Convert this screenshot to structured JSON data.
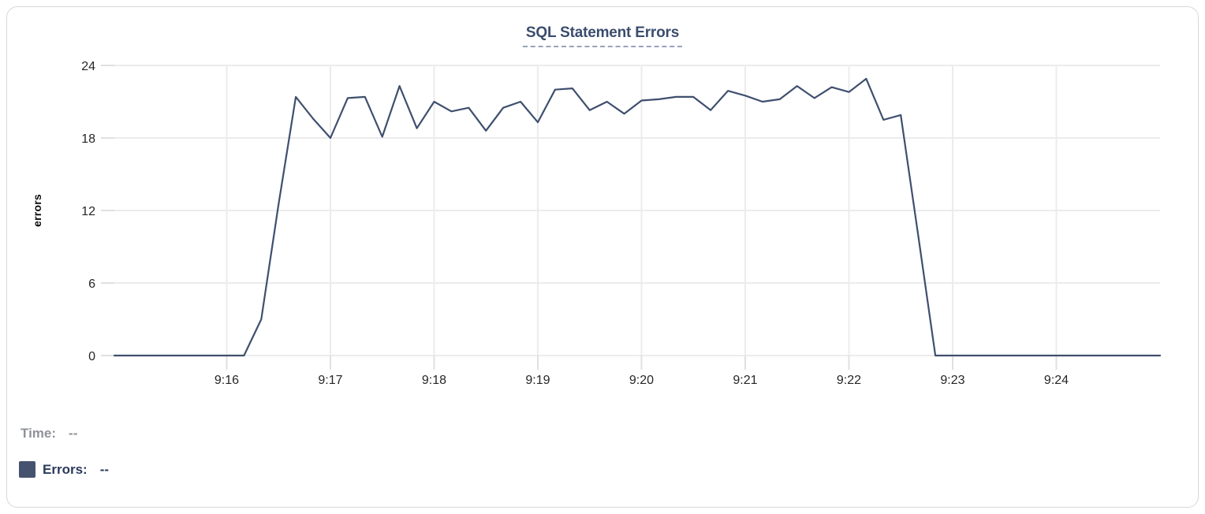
{
  "card": {
    "title": "SQL Statement Errors"
  },
  "tooltip": {
    "time_label": "Time:",
    "time_value": "--",
    "errors_label": "Errors:",
    "errors_value": "--"
  },
  "colors": {
    "line": "#3f4f6e",
    "grid": "#ececec",
    "tick_stub": "#e0e0e0",
    "axis_text": "#262626",
    "title": "#3b4d6e",
    "title_underline": "#98a3bc",
    "time_text": "#8e9298",
    "errors_text": "#2b3a5c",
    "swatch": "#46536e",
    "card_border": "#d8d8d8"
  },
  "chart_data": {
    "type": "line",
    "title": "SQL Statement Errors",
    "xlabel": "",
    "ylabel": "errors",
    "ylim": [
      0,
      24
    ],
    "y_tick_labels": [
      0,
      6,
      12,
      18,
      24
    ],
    "x_domain": [
      "9:14:55",
      "9:25:00"
    ],
    "x_tick_labels": [
      "9:16",
      "9:17",
      "9:18",
      "9:19",
      "9:20",
      "9:21",
      "9:22",
      "9:23",
      "9:24"
    ],
    "grid": true,
    "legend_position": "bottom-left",
    "series": [
      {
        "name": "Errors",
        "color": "#3f4f6e",
        "times": [
          "9:14:55",
          "9:15:00",
          "9:15:10",
          "9:15:20",
          "9:15:30",
          "9:15:40",
          "9:15:50",
          "9:16:00",
          "9:16:10",
          "9:16:20",
          "9:16:30",
          "9:16:40",
          "9:16:50",
          "9:17:00",
          "9:17:10",
          "9:17:20",
          "9:17:30",
          "9:17:40",
          "9:17:50",
          "9:18:00",
          "9:18:10",
          "9:18:20",
          "9:18:30",
          "9:18:40",
          "9:18:50",
          "9:19:00",
          "9:19:10",
          "9:19:20",
          "9:19:30",
          "9:19:40",
          "9:19:50",
          "9:20:00",
          "9:20:10",
          "9:20:20",
          "9:20:30",
          "9:20:40",
          "9:20:50",
          "9:21:00",
          "9:21:10",
          "9:21:20",
          "9:21:30",
          "9:21:40",
          "9:21:50",
          "9:22:00",
          "9:22:10",
          "9:22:20",
          "9:22:30",
          "9:22:40",
          "9:22:50",
          "9:23:00",
          "9:23:10",
          "9:23:20",
          "9:23:30",
          "9:23:40",
          "9:23:50",
          "9:24:00",
          "9:24:10",
          "9:24:20",
          "9:24:30",
          "9:24:40",
          "9:24:50",
          "9:25:00"
        ],
        "values": [
          0,
          0,
          0,
          0,
          0,
          0,
          0,
          0,
          0,
          3,
          12.5,
          21.4,
          19.6,
          18,
          21.3,
          21.4,
          18.1,
          22.3,
          18.8,
          21,
          20.2,
          20.5,
          18.6,
          20.5,
          21,
          19.3,
          22,
          22.1,
          20.3,
          21,
          20,
          21.1,
          21.2,
          21.4,
          21.4,
          20.3,
          21.9,
          21.5,
          21,
          21.2,
          22.3,
          21.3,
          22.2,
          21.8,
          22.9,
          19.5,
          19.9,
          10,
          0,
          0,
          0,
          0,
          0,
          0,
          0,
          0,
          0,
          0,
          0,
          0,
          0,
          0
        ]
      }
    ]
  }
}
